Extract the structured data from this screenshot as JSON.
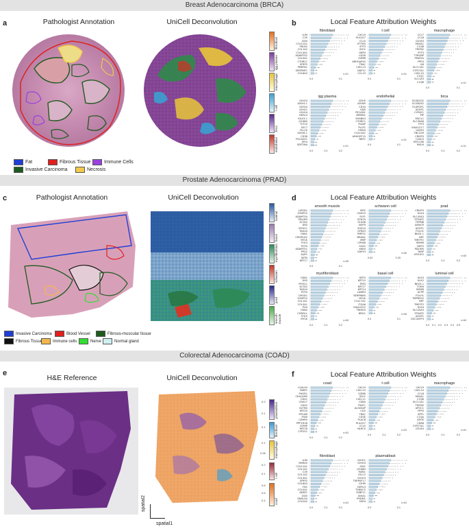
{
  "banners": {
    "brca": "Breast Adenocarcinoma (BRCA)",
    "prad": "Prostate Adenocarcinoma (PRAD)",
    "coad": "Colorectal Adenocarcinoma (COAD)"
  },
  "panels": {
    "a": "a",
    "b": "b",
    "c": "c",
    "d": "d",
    "e": "e",
    "f": "f"
  },
  "titles": {
    "a_left": "Pathologist Annotation",
    "a_right": "UniCell Deconvolution",
    "b": "Local Feature Attribution Weights",
    "c_left": "Pathologist Annotation",
    "c_right": "UniCell Deconvolution",
    "d": "Local Feature Attribution Weights",
    "e_left": "H&E Reference",
    "e_right": "UniCell Deconvolution",
    "f": "Local Feature Attribution Weights"
  },
  "brca_legend": [
    {
      "label": "Fat",
      "color": "#1f3fd6"
    },
    {
      "label": "Fibrous Tissue",
      "color": "#e02020"
    },
    {
      "label": "Immune Cells",
      "color": "#9b3fe0"
    },
    {
      "label": "Invasive Carcinoma",
      "color": "#1e5a1e"
    },
    {
      "label": "Necrosis",
      "color": "#f2c94c"
    }
  ],
  "prad_legend": [
    {
      "label": "Invasive Carcinoma",
      "color": "#1f3fd6"
    },
    {
      "label": "Blood Vessel",
      "color": "#e02020"
    },
    {
      "label": "Fibrous-muscular tissue",
      "color": "#1e5a1e"
    },
    {
      "label": "Fibrous Tissue",
      "color": "#111111"
    },
    {
      "label": "Immune cells",
      "color": "#f2b84c"
    },
    {
      "label": "Nerve",
      "color": "#33dd33"
    },
    {
      "label": "Normal gland",
      "color": "#cfeff0"
    }
  ],
  "brca_cbars": [
    "fibroblast",
    "igg plasma",
    "macrophage",
    "t cell",
    "brca",
    "endothelial"
  ],
  "prad_cbars": [
    "luminal",
    "basal",
    "myofibroblast",
    "schwann",
    "prad",
    "smooth muscle"
  ],
  "coad_cbars": [
    "plasmablast",
    "fibroblast",
    "macrophage",
    "t cell",
    "coad"
  ],
  "coad_cbar_ticks": {
    "plasmablast": [
      "0.2",
      "0.1"
    ],
    "fibroblast": [
      "0.1"
    ],
    "macrophage": [
      "0.1",
      "0.05"
    ],
    "t cell": [
      "0.2",
      "0.1"
    ],
    "coad": [
      "0.8",
      "0.6",
      "0.4"
    ]
  },
  "coad_axes": {
    "x": "spatial1",
    "y": "spatial2"
  },
  "brca_attr": [
    {
      "name": "fibroblast",
      "genes": [
        "LUM",
        "C1R",
        "DCN",
        "COL12A1",
        "FBLN2",
        "COL1A2",
        "COL14A1",
        "ADAMTS2",
        "COL3A1",
        "CTHRC1",
        "SFRP2",
        "PMEPA1",
        "SERPINF1",
        "COL6A3"
      ],
      "n": "n=51",
      "ticks": [
        "0.0",
        "0.1"
      ]
    },
    {
      "name": "t cell",
      "genes": [
        "CXCL9",
        "PLA2G7",
        "CCL5",
        "IFITM3",
        "IFIT3",
        "IDO1",
        "GBP4",
        "CD2B",
        "GZMB",
        "ARHGAP45",
        "TRAC",
        "CXCL13",
        "DAP12",
        "CCL19"
      ],
      "n": "n=51",
      "ticks": [
        "0.0",
        "0.1"
      ]
    },
    {
      "name": "macrophage",
      "genes": [
        "CCL7",
        "CCL8",
        "CD163",
        "MS4A1",
        "C1QB",
        "TREM2",
        "IFIT3",
        "TYROBP",
        "PPAP2A",
        "FPR3",
        "IL8",
        "SLC11A1",
        "CYP27A1",
        "CXCL10",
        "C1QC",
        "SLC1A3",
        "C1QB"
      ],
      "n": "n=51",
      "ticks": [
        "0.0",
        "0.1"
      ]
    },
    {
      "name": "igg plasma",
      "genes": [
        "IGHG3",
        "IGKV4-1",
        "IGHG4",
        "IGHG1",
        "IGHG4",
        "DERL3",
        "IGLV3-1",
        "JCHAIN",
        "TCFL5",
        "SSC7",
        "PLL20",
        "IGKV6-1",
        "CD38",
        "POU2AF1",
        "IRF4",
        "SDFTIN4"
      ],
      "n": "n=51",
      "ticks": [
        "0.0",
        "0.1",
        "0.2"
      ]
    },
    {
      "name": "endothelial",
      "genes": [
        "CDH5",
        "APLNR",
        "CD34",
        "KDR",
        "PECAM1",
        "MMRN1",
        "SHANK3",
        "CTHRC1",
        "PLVAP",
        "PLLP1",
        "EMCN",
        "COL15A1",
        "ARHGEF15",
        "NRP1"
      ],
      "n": "n=51",
      "ticks": [
        "0.0",
        "0.1"
      ]
    },
    {
      "name": "brca",
      "genes": [
        "SCGB1D2",
        "SCGB2A2",
        "ELAPOR1",
        "AZGP1",
        "CYP4Z1",
        "PIP",
        "MUCL1",
        "SLC39A6",
        "TFF3",
        "KIAA1217",
        "GATA3",
        "TBC1D9",
        "CRISP3",
        "CXXC5",
        "MYO13B",
        "MSLN"
      ],
      "n": "n=51",
      "ticks": [
        "0.0",
        "0.1",
        "0.2"
      ]
    }
  ],
  "prad_attr": [
    {
      "name": "smooth muscle",
      "genes": [
        "LMOD1",
        "SYNPO2",
        "ADAMTS4",
        "PDLIM3",
        "ACTA2",
        "DES",
        "MYH11",
        "TAGLN",
        "CNN1",
        "CRISPLD2",
        "MYLK",
        "FHL5",
        "PCP4",
        "ADAMTS1",
        "PPG2",
        "AQP1",
        "SKTN",
        "KRT17"
      ],
      "n": "n=68",
      "ticks": [
        "0.0",
        "0.1"
      ]
    },
    {
      "name": "schwann cell",
      "genes": [
        "MPZ",
        "CDH19",
        "PLP1",
        "SCN7A",
        "S100B",
        "NGFR",
        "SOX10",
        "GFRA3",
        "PMP22",
        "NRXN1",
        "MBP",
        "CRYAB",
        "SOX2",
        "XKR4",
        "GAP43"
      ],
      "n": "n=68",
      "ticks": [
        "0.00",
        "0.25"
      ]
    },
    {
      "name": "prad",
      "genes": [
        "CRISP3",
        "KLK4",
        "SLC45A3",
        "STEAP2",
        "TRPM8",
        "AMACR",
        "AZGP1",
        "FOLH1",
        "NKX3-1",
        "NPY",
        "TMEFF2",
        "MSMB",
        "NEFH",
        "PDLIM5",
        "TARP",
        "OR51E2"
      ],
      "n": "n=68",
      "ticks": [
        "0.0",
        "0.1",
        "0.2"
      ]
    },
    {
      "name": "myofibroblast",
      "genes": [
        "CNN1",
        "DES",
        "MYH11",
        "ACTA2",
        "TAGLN",
        "PCP4",
        "LMOD1",
        "SYNPO2",
        "COL1A1",
        "COL3A1",
        "PLN",
        "CNN2",
        "CHRDL1",
        "FHL5",
        "MYLK"
      ],
      "n": "n=68",
      "ticks": [
        "0.0",
        "0.1",
        "0.2"
      ]
    },
    {
      "name": "basal cell",
      "genes": [
        "KRT5",
        "KRT15",
        "TP63",
        "KRT17",
        "KRT14",
        "LAMB3",
        "SERPINB5",
        "MYLK",
        "COL17A1",
        "ITGA6",
        "KIAA1522",
        "TRIM29",
        "NRG1"
      ],
      "n": "n=68",
      "ticks": [
        "0.0",
        "0.1"
      ]
    },
    {
      "name": "luminal cell",
      "genes": [
        "KLK3",
        "KLK2",
        "NKX3-1",
        "TGM4",
        "MSMB",
        "ACPP",
        "FOLH1",
        "TMPRSS2",
        "NPY",
        "TMEFF2",
        "KLK4",
        "SLC45A3",
        "STEAP2",
        "AZGP1",
        "CDC42EP3"
      ],
      "n": "n=68",
      "ticks": [
        "0.0",
        "0.1",
        "0.2",
        "0.3",
        "0.4",
        "0.5"
      ]
    }
  ],
  "coad_attr": [
    {
      "name": "coad",
      "genes": [
        "LGALS4",
        "FABP1",
        "PHGR1",
        "CEACAM5",
        "CDX1",
        "CDH17",
        "CDX2",
        "OLFM4",
        "KRT20",
        "EPCAM",
        "PIGR",
        "CDHR5",
        "PPP1R1B",
        "CEMIP",
        "KRT18",
        "CYP2S1"
      ],
      "n": "n=63",
      "ticks": [
        "0.0",
        "0.1",
        "0.2"
      ]
    },
    {
      "name": "t cell",
      "genes": [
        "CXCL9",
        "CXCL10",
        "GZMB",
        "IDO1",
        "CXCL11",
        "CD8A",
        "TRAT1",
        "ALOX5AP",
        "CD2",
        "TRAC",
        "CD3E",
        "PLAC8",
        "PLA2G7",
        "CCL5",
        "NLRC5"
      ],
      "n": "n=63",
      "ticks": [
        "0.0",
        "0.1",
        "0.2"
      ]
    },
    {
      "name": "macrophage",
      "genes": [
        "CXCL9",
        "CXCL10",
        "CCL8",
        "MS4A1",
        "C1QB",
        "SLC11A1",
        "TREM2",
        "APOC1",
        "FPR3",
        "SPP1",
        "C1QA",
        "APOE",
        "CD68",
        "CYP27A1",
        "CD163"
      ],
      "n": "n=63",
      "ticks": [
        "0.0",
        "0.1",
        "0.2"
      ]
    },
    {
      "name": "fibroblast",
      "genes": [
        "LUM",
        "MXRA5",
        "COL12A1",
        "COL1A1",
        "C1R",
        "COL1A2",
        "COL3A1",
        "SFRP2",
        "COL6A3",
        "FN1",
        "COL5A1",
        "AEBP1",
        "DCN",
        "ENDL5A",
        "COL5A2"
      ],
      "n": "n=63",
      "ticks": [
        "0.0",
        "0.1",
        "0.2"
      ]
    },
    {
      "name": "plasmablast",
      "genes": [
        "IGHG1",
        "IGHG4",
        "IGKC",
        "JCHAIN",
        "MZB1",
        "IGLC2",
        "IGHG3",
        "TNFRSF17",
        "IGHM",
        "DERL3",
        "TXNDC5",
        "FKBP11",
        "IGHA1",
        "PRDM1",
        "SSR4"
      ],
      "n": "n=63",
      "ticks": [
        "0.0",
        "0.1"
      ]
    }
  ]
}
